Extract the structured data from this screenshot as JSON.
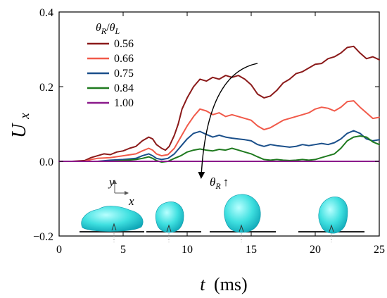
{
  "chart_data": {
    "type": "line",
    "xlabel": {
      "var": "t",
      "unit": "(ms)"
    },
    "ylabel": {
      "base": "U",
      "sub": "x"
    },
    "xlim": [
      0,
      25
    ],
    "ylim": [
      -0.2,
      0.4
    ],
    "xticks": [
      "0",
      "5",
      "10",
      "15",
      "20",
      "25"
    ],
    "yticks": [
      "−0.2",
      "0.0",
      "0.2",
      "0.4"
    ],
    "grid": false,
    "legend": {
      "title": {
        "a": "θ",
        "a_sub": "R",
        "sep": "/",
        "b": "θ",
        "b_sub": "L"
      },
      "placement": "top-left"
    },
    "annotation": {
      "sym": "θ",
      "sub": "R",
      "arrow": "↑",
      "description": "arrow indicating increasing ratio"
    },
    "inset": {
      "axis_y": "y",
      "axis_x": "x",
      "content": "four droplet shape snapshots on a substrate"
    },
    "series": [
      {
        "name": "0.56",
        "color": "#8b1a1a",
        "points": [
          [
            0,
            0
          ],
          [
            1,
            0
          ],
          [
            2,
            0.002
          ],
          [
            2.5,
            0.01
          ],
          [
            3,
            0.015
          ],
          [
            3.5,
            0.02
          ],
          [
            4,
            0.018
          ],
          [
            4.5,
            0.025
          ],
          [
            5,
            0.028
          ],
          [
            5.5,
            0.035
          ],
          [
            6,
            0.04
          ],
          [
            6.5,
            0.055
          ],
          [
            7,
            0.065
          ],
          [
            7.3,
            0.06
          ],
          [
            7.6,
            0.045
          ],
          [
            8,
            0.035
          ],
          [
            8.3,
            0.03
          ],
          [
            8.6,
            0.04
          ],
          [
            9,
            0.07
          ],
          [
            9.3,
            0.1
          ],
          [
            9.6,
            0.14
          ],
          [
            10,
            0.17
          ],
          [
            10.5,
            0.2
          ],
          [
            11,
            0.22
          ],
          [
            11.5,
            0.215
          ],
          [
            12,
            0.225
          ],
          [
            12.5,
            0.22
          ],
          [
            13,
            0.23
          ],
          [
            13.5,
            0.225
          ],
          [
            14,
            0.23
          ],
          [
            14.5,
            0.22
          ],
          [
            15,
            0.205
          ],
          [
            15.5,
            0.18
          ],
          [
            16,
            0.17
          ],
          [
            16.5,
            0.175
          ],
          [
            17,
            0.19
          ],
          [
            17.5,
            0.21
          ],
          [
            18,
            0.22
          ],
          [
            18.5,
            0.235
          ],
          [
            19,
            0.24
          ],
          [
            19.5,
            0.25
          ],
          [
            20,
            0.26
          ],
          [
            20.5,
            0.262
          ],
          [
            21,
            0.275
          ],
          [
            21.5,
            0.28
          ],
          [
            22,
            0.29
          ],
          [
            22.5,
            0.305
          ],
          [
            23,
            0.308
          ],
          [
            23.5,
            0.29
          ],
          [
            24,
            0.275
          ],
          [
            24.5,
            0.28
          ],
          [
            25,
            0.272
          ]
        ]
      },
      {
        "name": "0.66",
        "color": "#f15a4a",
        "points": [
          [
            0,
            0
          ],
          [
            2,
            0
          ],
          [
            2.5,
            0.005
          ],
          [
            3,
            0.008
          ],
          [
            4,
            0.01
          ],
          [
            5,
            0.015
          ],
          [
            6,
            0.02
          ],
          [
            6.5,
            0.028
          ],
          [
            7,
            0.035
          ],
          [
            7.3,
            0.03
          ],
          [
            7.6,
            0.02
          ],
          [
            8,
            0.015
          ],
          [
            8.5,
            0.018
          ],
          [
            9,
            0.035
          ],
          [
            9.5,
            0.065
          ],
          [
            10,
            0.095
          ],
          [
            10.5,
            0.12
          ],
          [
            11,
            0.14
          ],
          [
            11.5,
            0.135
          ],
          [
            12,
            0.125
          ],
          [
            12.5,
            0.13
          ],
          [
            13,
            0.12
          ],
          [
            13.5,
            0.125
          ],
          [
            14,
            0.12
          ],
          [
            14.5,
            0.115
          ],
          [
            15,
            0.11
          ],
          [
            15.5,
            0.095
          ],
          [
            16,
            0.085
          ],
          [
            16.5,
            0.09
          ],
          [
            17,
            0.1
          ],
          [
            17.5,
            0.11
          ],
          [
            18,
            0.115
          ],
          [
            18.5,
            0.12
          ],
          [
            19,
            0.125
          ],
          [
            19.5,
            0.13
          ],
          [
            20,
            0.14
          ],
          [
            20.5,
            0.145
          ],
          [
            21,
            0.142
          ],
          [
            21.5,
            0.135
          ],
          [
            22,
            0.145
          ],
          [
            22.5,
            0.16
          ],
          [
            23,
            0.162
          ],
          [
            23.5,
            0.145
          ],
          [
            24,
            0.13
          ],
          [
            24.5,
            0.115
          ],
          [
            25,
            0.118
          ]
        ]
      },
      {
        "name": "0.75",
        "color": "#1a4f8a",
        "points": [
          [
            0,
            0
          ],
          [
            3,
            0
          ],
          [
            4,
            0.003
          ],
          [
            5,
            0.005
          ],
          [
            6,
            0.008
          ],
          [
            6.5,
            0.015
          ],
          [
            7,
            0.02
          ],
          [
            7.3,
            0.015
          ],
          [
            7.6,
            0.008
          ],
          [
            8,
            0.005
          ],
          [
            8.5,
            0.008
          ],
          [
            9,
            0.02
          ],
          [
            9.5,
            0.04
          ],
          [
            10,
            0.06
          ],
          [
            10.5,
            0.075
          ],
          [
            11,
            0.08
          ],
          [
            11.5,
            0.072
          ],
          [
            12,
            0.065
          ],
          [
            12.5,
            0.07
          ],
          [
            13,
            0.065
          ],
          [
            13.5,
            0.062
          ],
          [
            14,
            0.06
          ],
          [
            14.5,
            0.058
          ],
          [
            15,
            0.055
          ],
          [
            15.5,
            0.045
          ],
          [
            16,
            0.04
          ],
          [
            16.5,
            0.045
          ],
          [
            17,
            0.042
          ],
          [
            17.5,
            0.04
          ],
          [
            18,
            0.038
          ],
          [
            18.5,
            0.04
          ],
          [
            19,
            0.045
          ],
          [
            19.5,
            0.042
          ],
          [
            20,
            0.045
          ],
          [
            20.5,
            0.048
          ],
          [
            21,
            0.045
          ],
          [
            21.5,
            0.05
          ],
          [
            22,
            0.06
          ],
          [
            22.5,
            0.075
          ],
          [
            23,
            0.082
          ],
          [
            23.5,
            0.075
          ],
          [
            24,
            0.06
          ],
          [
            24.5,
            0.055
          ],
          [
            25,
            0.058
          ]
        ]
      },
      {
        "name": "0.84",
        "color": "#1f7a1f",
        "points": [
          [
            0,
            0
          ],
          [
            4,
            0
          ],
          [
            5,
            0.002
          ],
          [
            6,
            0.005
          ],
          [
            6.5,
            0.008
          ],
          [
            7,
            0.012
          ],
          [
            7.3,
            0.008
          ],
          [
            7.6,
            0.002
          ],
          [
            8,
            -0.002
          ],
          [
            8.5,
            0
          ],
          [
            9,
            0.008
          ],
          [
            9.5,
            0.015
          ],
          [
            10,
            0.025
          ],
          [
            10.5,
            0.03
          ],
          [
            11,
            0.033
          ],
          [
            11.5,
            0.03
          ],
          [
            12,
            0.028
          ],
          [
            12.5,
            0.032
          ],
          [
            13,
            0.03
          ],
          [
            13.5,
            0.035
          ],
          [
            14,
            0.03
          ],
          [
            14.5,
            0.025
          ],
          [
            15,
            0.02
          ],
          [
            15.5,
            0.012
          ],
          [
            16,
            0.005
          ],
          [
            16.5,
            0.003
          ],
          [
            17,
            0.005
          ],
          [
            17.5,
            0.003
          ],
          [
            18,
            0.002
          ],
          [
            18.5,
            0.003
          ],
          [
            19,
            0.005
          ],
          [
            19.5,
            0.003
          ],
          [
            20,
            0.005
          ],
          [
            20.5,
            0.01
          ],
          [
            21,
            0.015
          ],
          [
            21.5,
            0.02
          ],
          [
            22,
            0.035
          ],
          [
            22.5,
            0.055
          ],
          [
            23,
            0.065
          ],
          [
            23.5,
            0.068
          ],
          [
            24,
            0.065
          ],
          [
            24.5,
            0.052
          ],
          [
            25,
            0.045
          ]
        ]
      },
      {
        "name": "1.00",
        "color": "#8b1a8b",
        "points": [
          [
            0,
            0
          ],
          [
            25,
            0
          ]
        ]
      }
    ]
  }
}
